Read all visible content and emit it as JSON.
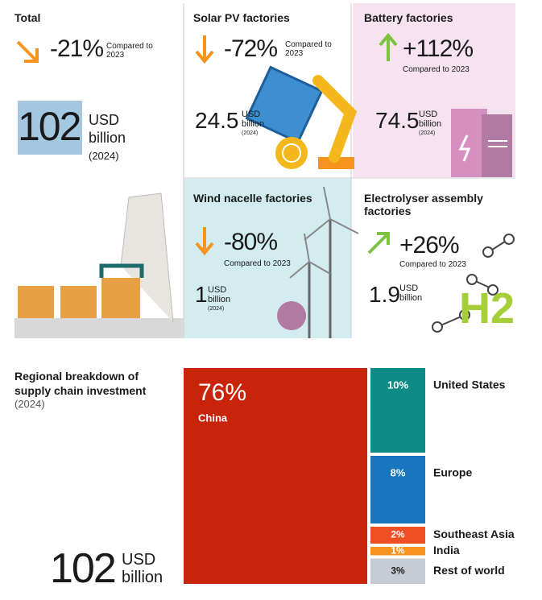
{
  "total": {
    "title": "Total",
    "change": "-21%",
    "compared": "Compared to 2023",
    "value": "102",
    "unit": "USD billion",
    "year": "(2024)"
  },
  "panels": [
    {
      "title": "Solar PV factories",
      "change": "-72%",
      "compared": "Compared to 2023",
      "value": "24.5",
      "unit": "USD billion",
      "year": "(2024)"
    },
    {
      "title": "Battery factories",
      "change": "+112%",
      "compared": "Compared to 2023",
      "value": "74.5",
      "unit": "USD billion",
      "year": "(2024)"
    },
    {
      "title": "Wind nacelle factories",
      "change": "-80%",
      "compared": "Compared to 2023",
      "value": "1",
      "unit": "USD billion",
      "year": "(2024)"
    },
    {
      "title": "Electrolyser assembly factories",
      "change": "+26%",
      "compared": "Compared to 2023",
      "value": "1.9",
      "unit": "USD billion",
      "icon_label": "H2"
    }
  ],
  "chart_data": {
    "type": "treemap",
    "title": "Regional breakdown of supply chain investment",
    "subtitle": "(2024)",
    "total_value": "102",
    "total_unit": "USD billion",
    "categories": [
      "China",
      "United States",
      "Europe",
      "Southeast Asia",
      "India",
      "Rest of world"
    ],
    "values": [
      76,
      10,
      8,
      2,
      1,
      3
    ],
    "value_labels": [
      "76%",
      "10%",
      "8%",
      "2%",
      "1%",
      "3%"
    ],
    "colors": [
      "#c8240a",
      "#0e8a87",
      "#1776bd",
      "#f04e23",
      "#f7941d",
      "#c6ccd4"
    ]
  }
}
